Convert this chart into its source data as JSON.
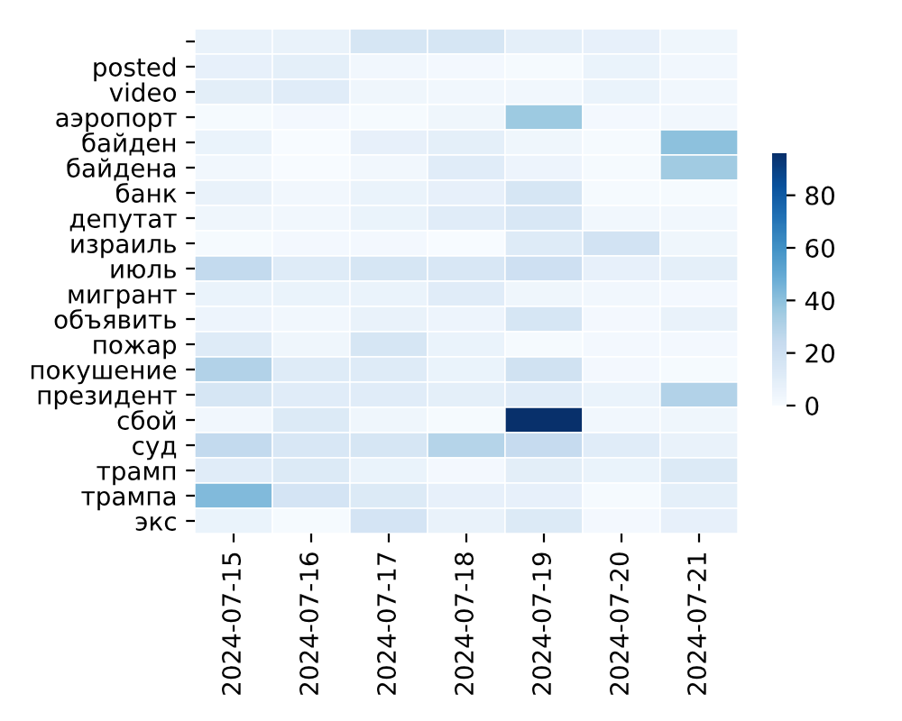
{
  "chart_data": {
    "type": "heatmap",
    "categories": [
      "2024-07-15",
      "2024-07-16",
      "2024-07-17",
      "2024-07-18",
      "2024-07-19",
      "2024-07-20",
      "2024-07-21"
    ],
    "y_categories": [
      null,
      "posted",
      "video",
      "аэропорт",
      "байден",
      "байдена",
      "банк",
      "депутат",
      "израиль",
      "июль",
      "мигрант",
      "объявить",
      "пожар",
      "покушение",
      "президент",
      "сбой",
      "суд",
      "трамп",
      "трампа",
      "экс"
    ],
    "cells": [
      [
        7,
        7,
        16,
        16,
        9,
        8,
        4
      ],
      [
        8,
        9,
        3,
        2,
        1,
        6,
        3
      ],
      [
        10,
        11,
        4,
        3,
        3,
        6,
        3
      ],
      [
        1,
        2,
        1,
        4,
        36,
        2,
        3
      ],
      [
        6,
        0,
        8,
        9,
        4,
        1,
        40
      ],
      [
        3,
        0,
        3,
        11,
        5,
        1,
        35
      ],
      [
        7,
        3,
        6,
        8,
        16,
        1,
        1
      ],
      [
        4,
        3,
        6,
        11,
        15,
        3,
        3
      ],
      [
        1,
        2,
        2,
        0,
        12,
        18,
        4
      ],
      [
        25,
        12,
        16,
        15,
        20,
        8,
        9
      ],
      [
        6,
        6,
        6,
        11,
        4,
        3,
        2
      ],
      [
        5,
        3,
        7,
        5,
        16,
        2,
        7
      ],
      [
        12,
        4,
        16,
        6,
        1,
        2,
        2
      ],
      [
        30,
        12,
        12,
        6,
        19,
        2,
        1
      ],
      [
        16,
        11,
        11,
        9,
        11,
        6,
        30
      ],
      [
        3,
        13,
        4,
        1,
        96,
        3,
        4
      ],
      [
        25,
        15,
        16,
        29,
        24,
        11,
        7
      ],
      [
        11,
        13,
        6,
        2,
        10,
        6,
        13
      ],
      [
        43,
        17,
        13,
        8,
        8,
        1,
        9
      ],
      [
        6,
        1,
        17,
        7,
        13,
        2,
        8
      ]
    ],
    "clim": [
      0,
      96
    ],
    "cticks": [
      0,
      20,
      40,
      60,
      80
    ]
  }
}
